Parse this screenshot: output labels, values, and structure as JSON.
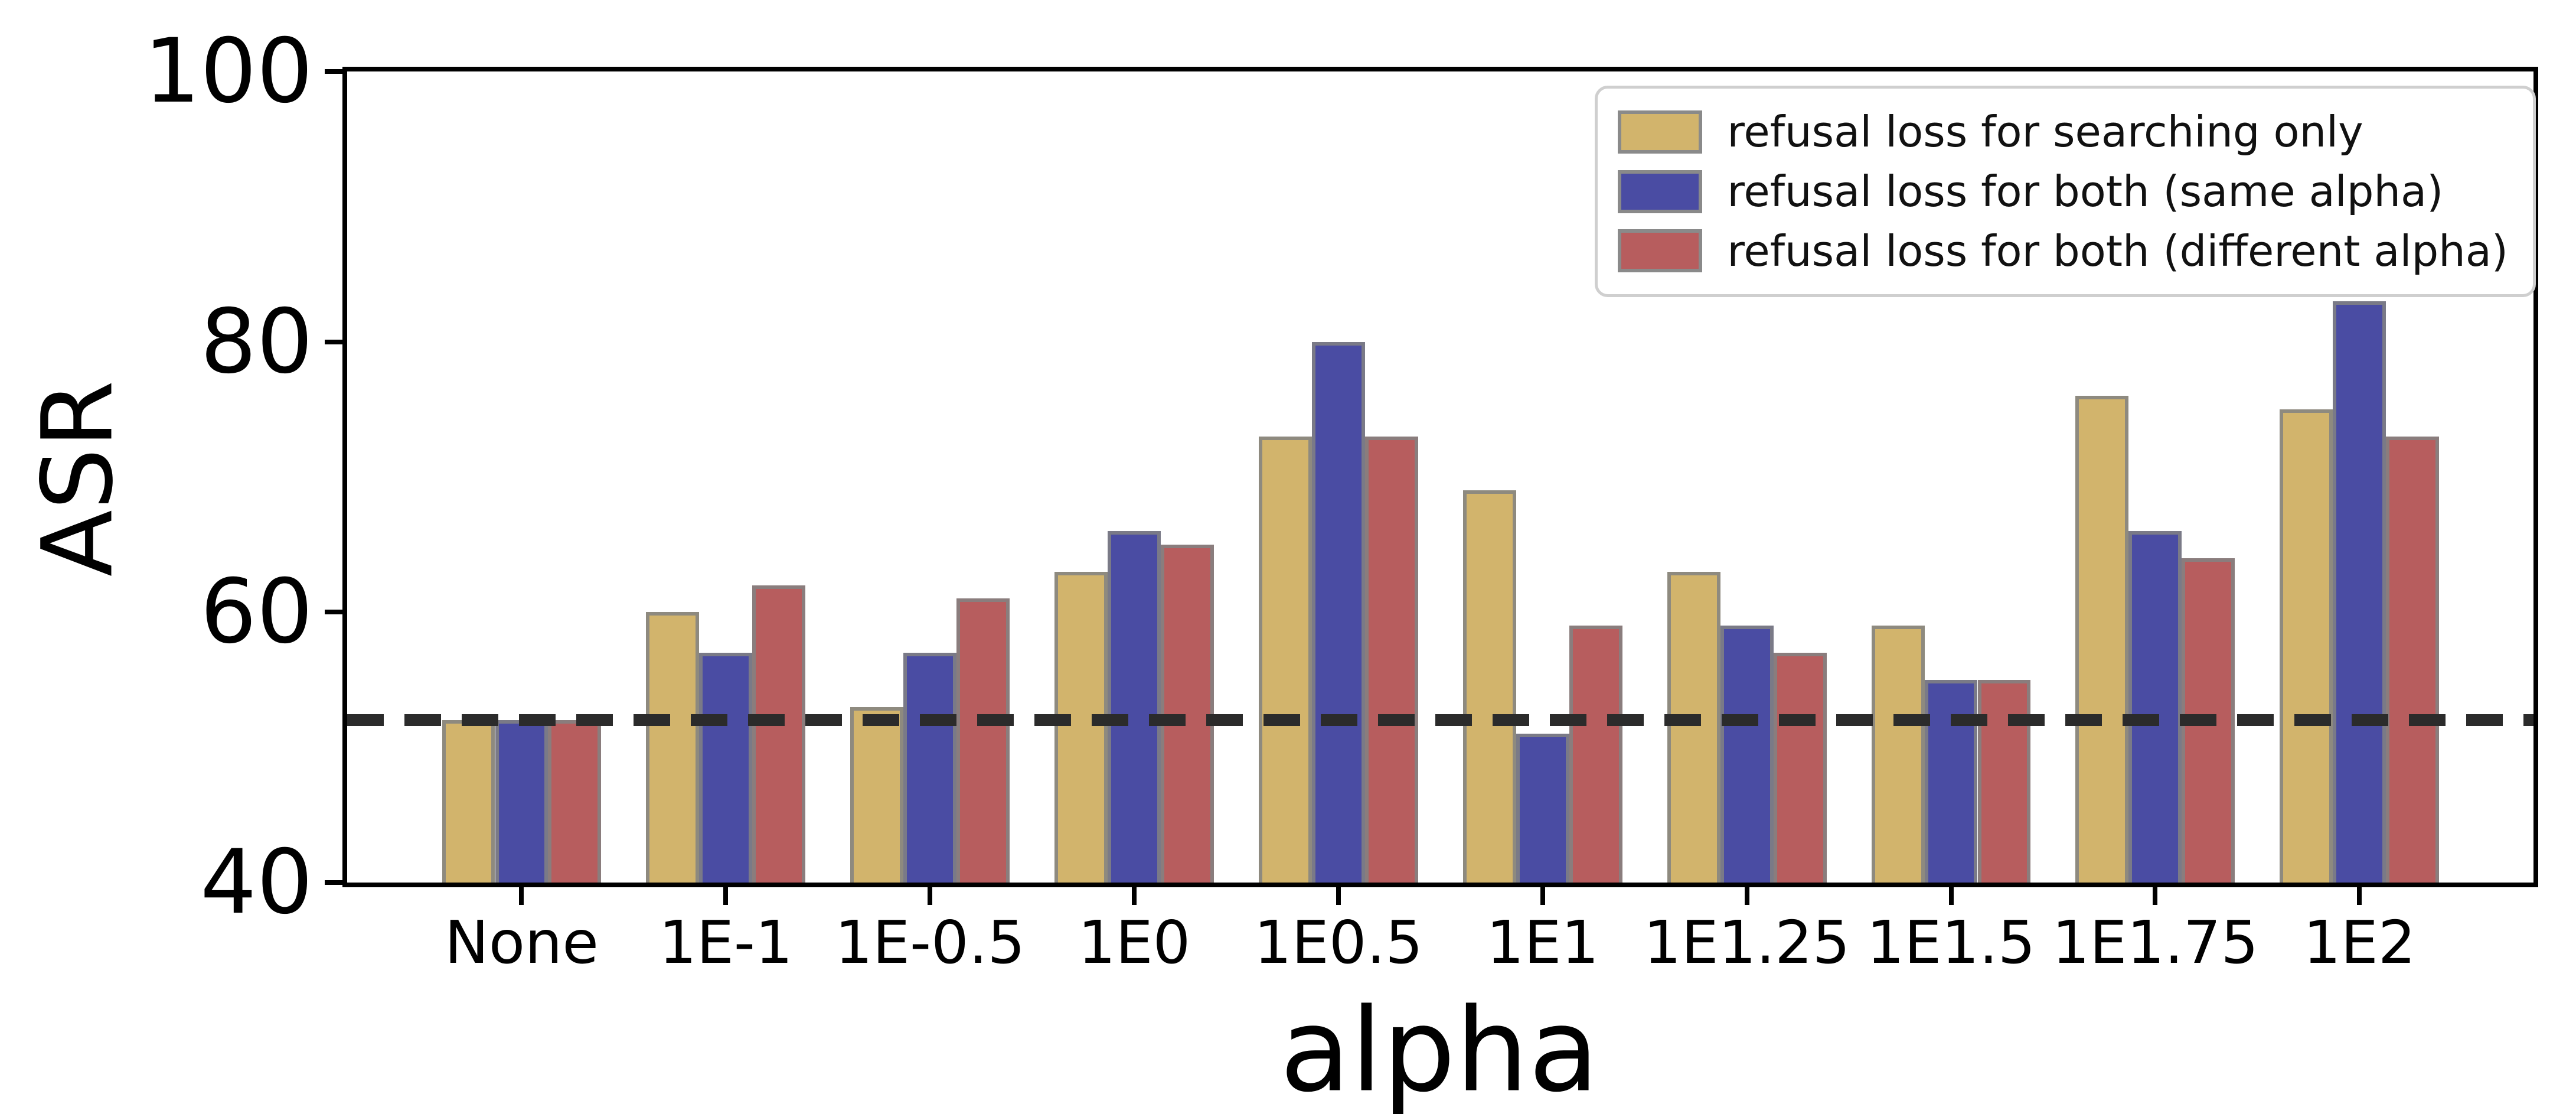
{
  "chart_data": {
    "type": "bar",
    "title": "",
    "xlabel": "alpha",
    "ylabel": "ASR",
    "ylim": [
      40,
      100
    ],
    "yticks": [
      40,
      60,
      80,
      100
    ],
    "grid": false,
    "background": "#ffffff",
    "axis_color": "#000000",
    "bar_edge_color": "#868686",
    "legend_position": "upper right",
    "categories": [
      "None",
      "1E-1",
      "1E-0.5",
      "1E0",
      "1E0.5",
      "1E1",
      "1E1.25",
      "1E1.5",
      "1E1.75",
      "1E2"
    ],
    "series": [
      {
        "name": "refusal loss for searching only",
        "color": "#d2b46c",
        "values": [
          52,
          60,
          53,
          63,
          73,
          69,
          63,
          59,
          76,
          75
        ]
      },
      {
        "name": "refusal loss for both (same alpha)",
        "color": "#4a4ca3",
        "values": [
          52,
          57,
          57,
          66,
          80,
          51,
          59,
          55,
          66,
          83
        ]
      },
      {
        "name": "refusal loss for both (different alpha)",
        "color": "#b75d5e",
        "values": [
          52,
          62,
          61,
          65,
          73,
          59,
          57,
          55,
          64,
          73
        ]
      }
    ],
    "reference_line": {
      "value": 52,
      "style": "dashed",
      "color": "#2b2b2b"
    }
  }
}
